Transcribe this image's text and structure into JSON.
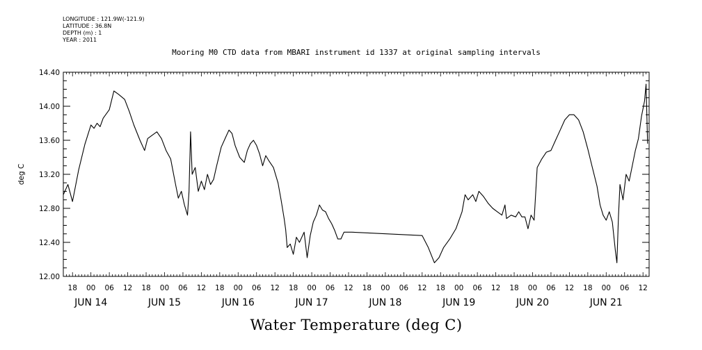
{
  "header": {
    "meta_lines": [
      "LONGITUDE : 121.9W(-121.9)",
      "LATITUDE : 36.8N",
      "DEPTH (m) : 1",
      "YEAR : 2011"
    ],
    "title": "Mooring M0 CTD data from MBARI instrument id 1337 at original sampling intervals"
  },
  "chart_data": {
    "type": "line",
    "title": "Mooring M0 CTD data from MBARI instrument id 1337 at original sampling intervals",
    "xlabel": "Water Temperature (deg C)",
    "ylabel": "deg C",
    "ylim": [
      12.0,
      14.4
    ],
    "yticks": [
      "12.00",
      "12.40",
      "12.80",
      "13.20",
      "13.60",
      "14.00",
      "14.40"
    ],
    "xlim": [
      "2011-06-13T15:00",
      "2011-06-21T14:00"
    ],
    "xtick_hours": [
      "18",
      "00",
      "06",
      "12",
      "18",
      "00",
      "06",
      "12",
      "18",
      "00",
      "06",
      "12",
      "18",
      "00",
      "06",
      "12",
      "18",
      "00",
      "06",
      "12",
      "18",
      "00",
      "06",
      "12",
      "18",
      "00",
      "06",
      "12",
      "18",
      "00",
      "06",
      "12"
    ],
    "day_labels": [
      "JUN 14",
      "JUN 15",
      "JUN 16",
      "JUN 17",
      "JUN 18",
      "JUN 19",
      "JUN 20",
      "JUN 21"
    ],
    "grid": false,
    "series": [
      {
        "color": "#000000",
        "points": [
          [
            "2011-06-13T15:00",
            12.96
          ],
          [
            "2011-06-13T16:30",
            13.08
          ],
          [
            "2011-06-13T18:00",
            12.88
          ],
          [
            "2011-06-13T20:00",
            13.25
          ],
          [
            "2011-06-13T22:00",
            13.55
          ],
          [
            "2011-06-14T00:00",
            13.78
          ],
          [
            "2011-06-14T01:00",
            13.74
          ],
          [
            "2011-06-14T02:00",
            13.8
          ],
          [
            "2011-06-14T03:00",
            13.76
          ],
          [
            "2011-06-14T04:00",
            13.86
          ],
          [
            "2011-06-14T06:00",
            13.96
          ],
          [
            "2011-06-14T07:30",
            14.18
          ],
          [
            "2011-06-14T09:00",
            14.14
          ],
          [
            "2011-06-14T11:00",
            14.08
          ],
          [
            "2011-06-14T12:30",
            13.94
          ],
          [
            "2011-06-14T14:00",
            13.78
          ],
          [
            "2011-06-14T16:00",
            13.6
          ],
          [
            "2011-06-14T17:30",
            13.48
          ],
          [
            "2011-06-14T18:30",
            13.62
          ],
          [
            "2011-06-14T20:00",
            13.66
          ],
          [
            "2011-06-14T21:30",
            13.7
          ],
          [
            "2011-06-14T23:00",
            13.62
          ],
          [
            "2011-06-15T00:30",
            13.48
          ],
          [
            "2011-06-15T02:00",
            13.38
          ],
          [
            "2011-06-15T03:30",
            13.1
          ],
          [
            "2011-06-15T04:30",
            12.92
          ],
          [
            "2011-06-15T05:30",
            13.0
          ],
          [
            "2011-06-15T06:30",
            12.84
          ],
          [
            "2011-06-15T07:30",
            12.72
          ],
          [
            "2011-06-15T08:00",
            13.0
          ],
          [
            "2011-06-15T08:30",
            13.7
          ],
          [
            "2011-06-15T09:00",
            13.2
          ],
          [
            "2011-06-15T10:00",
            13.28
          ],
          [
            "2011-06-15T11:00",
            13.0
          ],
          [
            "2011-06-15T12:00",
            13.12
          ],
          [
            "2011-06-15T13:00",
            13.02
          ],
          [
            "2011-06-15T14:00",
            13.2
          ],
          [
            "2011-06-15T15:00",
            13.08
          ],
          [
            "2011-06-15T16:00",
            13.14
          ],
          [
            "2011-06-15T17:00",
            13.3
          ],
          [
            "2011-06-15T18:30",
            13.52
          ],
          [
            "2011-06-15T20:00",
            13.64
          ],
          [
            "2011-06-15T21:00",
            13.72
          ],
          [
            "2011-06-15T22:00",
            13.68
          ],
          [
            "2011-06-15T23:00",
            13.54
          ],
          [
            "2011-06-16T00:30",
            13.4
          ],
          [
            "2011-06-16T02:00",
            13.34
          ],
          [
            "2011-06-16T03:00",
            13.48
          ],
          [
            "2011-06-16T04:00",
            13.56
          ],
          [
            "2011-06-16T05:00",
            13.6
          ],
          [
            "2011-06-16T06:00",
            13.54
          ],
          [
            "2011-06-16T07:00",
            13.44
          ],
          [
            "2011-06-16T08:00",
            13.3
          ],
          [
            "2011-06-16T09:00",
            13.42
          ],
          [
            "2011-06-16T10:00",
            13.36
          ],
          [
            "2011-06-16T11:30",
            13.28
          ],
          [
            "2011-06-16T13:00",
            13.1
          ],
          [
            "2011-06-16T14:00",
            12.9
          ],
          [
            "2011-06-16T15:00",
            12.68
          ],
          [
            "2011-06-16T15:30",
            12.55
          ],
          [
            "2011-06-16T16:00",
            12.34
          ],
          [
            "2011-06-16T17:00",
            12.38
          ],
          [
            "2011-06-16T18:00",
            12.26
          ],
          [
            "2011-06-16T19:00",
            12.46
          ],
          [
            "2011-06-16T20:00",
            12.4
          ],
          [
            "2011-06-16T21:30",
            12.52
          ],
          [
            "2011-06-16T22:30",
            12.22
          ],
          [
            "2011-06-16T23:30",
            12.48
          ],
          [
            "2011-06-17T00:30",
            12.64
          ],
          [
            "2011-06-17T01:30",
            12.72
          ],
          [
            "2011-06-17T02:30",
            12.84
          ],
          [
            "2011-06-17T03:30",
            12.78
          ],
          [
            "2011-06-17T04:30",
            12.76
          ],
          [
            "2011-06-17T05:30",
            12.68
          ],
          [
            "2011-06-17T06:30",
            12.62
          ],
          [
            "2011-06-17T07:30",
            12.54
          ],
          [
            "2011-06-17T08:30",
            12.44
          ],
          [
            "2011-06-17T09:30",
            12.44
          ],
          [
            "2011-06-17T10:30",
            12.52
          ],
          [
            "2011-06-17T13:00",
            12.52
          ],
          [
            "2011-06-18T12:00",
            12.48
          ],
          [
            "2011-06-18T14:00",
            12.34
          ],
          [
            "2011-06-18T16:00",
            12.16
          ],
          [
            "2011-06-18T17:30",
            12.22
          ],
          [
            "2011-06-18T19:00",
            12.34
          ],
          [
            "2011-06-18T21:00",
            12.44
          ],
          [
            "2011-06-18T23:00",
            12.56
          ],
          [
            "2011-06-19T01:00",
            12.76
          ],
          [
            "2011-06-19T02:00",
            12.96
          ],
          [
            "2011-06-19T03:00",
            12.9
          ],
          [
            "2011-06-19T04:30",
            12.96
          ],
          [
            "2011-06-19T05:30",
            12.88
          ],
          [
            "2011-06-19T06:30",
            13.0
          ],
          [
            "2011-06-19T08:00",
            12.94
          ],
          [
            "2011-06-19T09:30",
            12.86
          ],
          [
            "2011-06-19T11:00",
            12.8
          ],
          [
            "2011-06-19T12:30",
            12.76
          ],
          [
            "2011-06-19T14:00",
            12.72
          ],
          [
            "2011-06-19T15:00",
            12.84
          ],
          [
            "2011-06-19T15:30",
            12.68
          ],
          [
            "2011-06-19T17:00",
            12.72
          ],
          [
            "2011-06-19T18:30",
            12.7
          ],
          [
            "2011-06-19T19:30",
            12.76
          ],
          [
            "2011-06-19T20:30",
            12.7
          ],
          [
            "2011-06-19T21:30",
            12.7
          ],
          [
            "2011-06-19T22:30",
            12.56
          ],
          [
            "2011-06-19T23:30",
            12.72
          ],
          [
            "2011-06-20T00:30",
            12.66
          ],
          [
            "2011-06-20T01:30",
            13.28
          ],
          [
            "2011-06-20T03:00",
            13.38
          ],
          [
            "2011-06-20T04:30",
            13.46
          ],
          [
            "2011-06-20T06:00",
            13.48
          ],
          [
            "2011-06-20T07:30",
            13.6
          ],
          [
            "2011-06-20T09:00",
            13.72
          ],
          [
            "2011-06-20T10:30",
            13.84
          ],
          [
            "2011-06-20T12:00",
            13.9
          ],
          [
            "2011-06-20T13:30",
            13.9
          ],
          [
            "2011-06-20T15:00",
            13.84
          ],
          [
            "2011-06-20T16:30",
            13.7
          ],
          [
            "2011-06-20T18:00",
            13.5
          ],
          [
            "2011-06-20T19:30",
            13.28
          ],
          [
            "2011-06-20T21:00",
            13.06
          ],
          [
            "2011-06-20T22:00",
            12.84
          ],
          [
            "2011-06-20T23:00",
            12.72
          ],
          [
            "2011-06-21T00:00",
            12.66
          ],
          [
            "2011-06-21T01:00",
            12.76
          ],
          [
            "2011-06-21T02:00",
            12.64
          ],
          [
            "2011-06-21T03:00",
            12.3
          ],
          [
            "2011-06-21T03:30",
            12.16
          ],
          [
            "2011-06-21T04:00",
            12.7
          ],
          [
            "2011-06-21T04:30",
            13.08
          ],
          [
            "2011-06-21T05:30",
            12.9
          ],
          [
            "2011-06-21T06:30",
            13.2
          ],
          [
            "2011-06-21T07:30",
            13.12
          ],
          [
            "2011-06-21T08:30",
            13.3
          ],
          [
            "2011-06-21T09:30",
            13.48
          ],
          [
            "2011-06-21T10:30",
            13.62
          ],
          [
            "2011-06-21T11:30",
            13.88
          ],
          [
            "2011-06-21T12:30",
            14.06
          ],
          [
            "2011-06-21T13:00",
            14.26
          ],
          [
            "2011-06-21T13:30",
            13.56
          ]
        ]
      }
    ]
  }
}
